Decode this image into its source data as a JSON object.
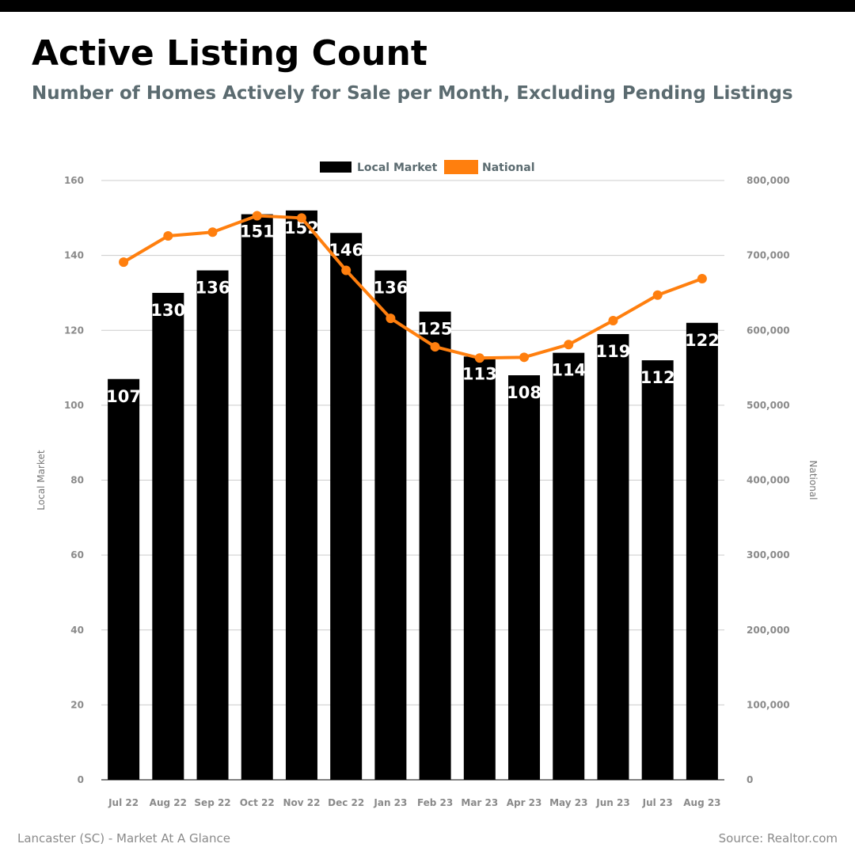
{
  "header": {
    "title": "Active Listing Count",
    "subtitle": "Number of Homes Actively for Sale per Month, Excluding Pending Listings"
  },
  "footer": {
    "left": "Lancaster (SC) - Market At A Glance",
    "right": "Source: Realtor.com"
  },
  "colors": {
    "bar": "#000000",
    "line": "#ff7f0e",
    "grid": "#cccccc",
    "subtitle": "#5b6b70"
  },
  "chart_data": {
    "type": "bar",
    "categories": [
      "Jul 22",
      "Aug 22",
      "Sep 22",
      "Oct 22",
      "Nov 22",
      "Dec 22",
      "Jan 23",
      "Feb 23",
      "Mar 23",
      "Apr 23",
      "May 23",
      "Jun 23",
      "Jul 23",
      "Aug 23"
    ],
    "series": [
      {
        "name": "Local Market",
        "type": "bar",
        "axis": "left",
        "values": [
          107,
          130,
          136,
          151,
          152,
          146,
          136,
          125,
          113,
          108,
          114,
          119,
          112,
          122
        ]
      },
      {
        "name": "National",
        "type": "line",
        "axis": "right",
        "values": [
          691000,
          726000,
          731000,
          753000,
          750000,
          680000,
          616000,
          578000,
          563000,
          564000,
          581000,
          613000,
          647000,
          669000
        ]
      }
    ],
    "ylabel": "Local Market",
    "y2label": "National",
    "ylim": [
      0,
      160
    ],
    "y2lim": [
      0,
      800000
    ],
    "yticks": [
      "0",
      "20",
      "40",
      "60",
      "80",
      "100",
      "120",
      "140",
      "160"
    ],
    "y2ticks": [
      "0",
      "100,000",
      "200,000",
      "300,000",
      "400,000",
      "500,000",
      "600,000",
      "700,000",
      "800,000"
    ],
    "legend": "top-center",
    "grid": true
  }
}
